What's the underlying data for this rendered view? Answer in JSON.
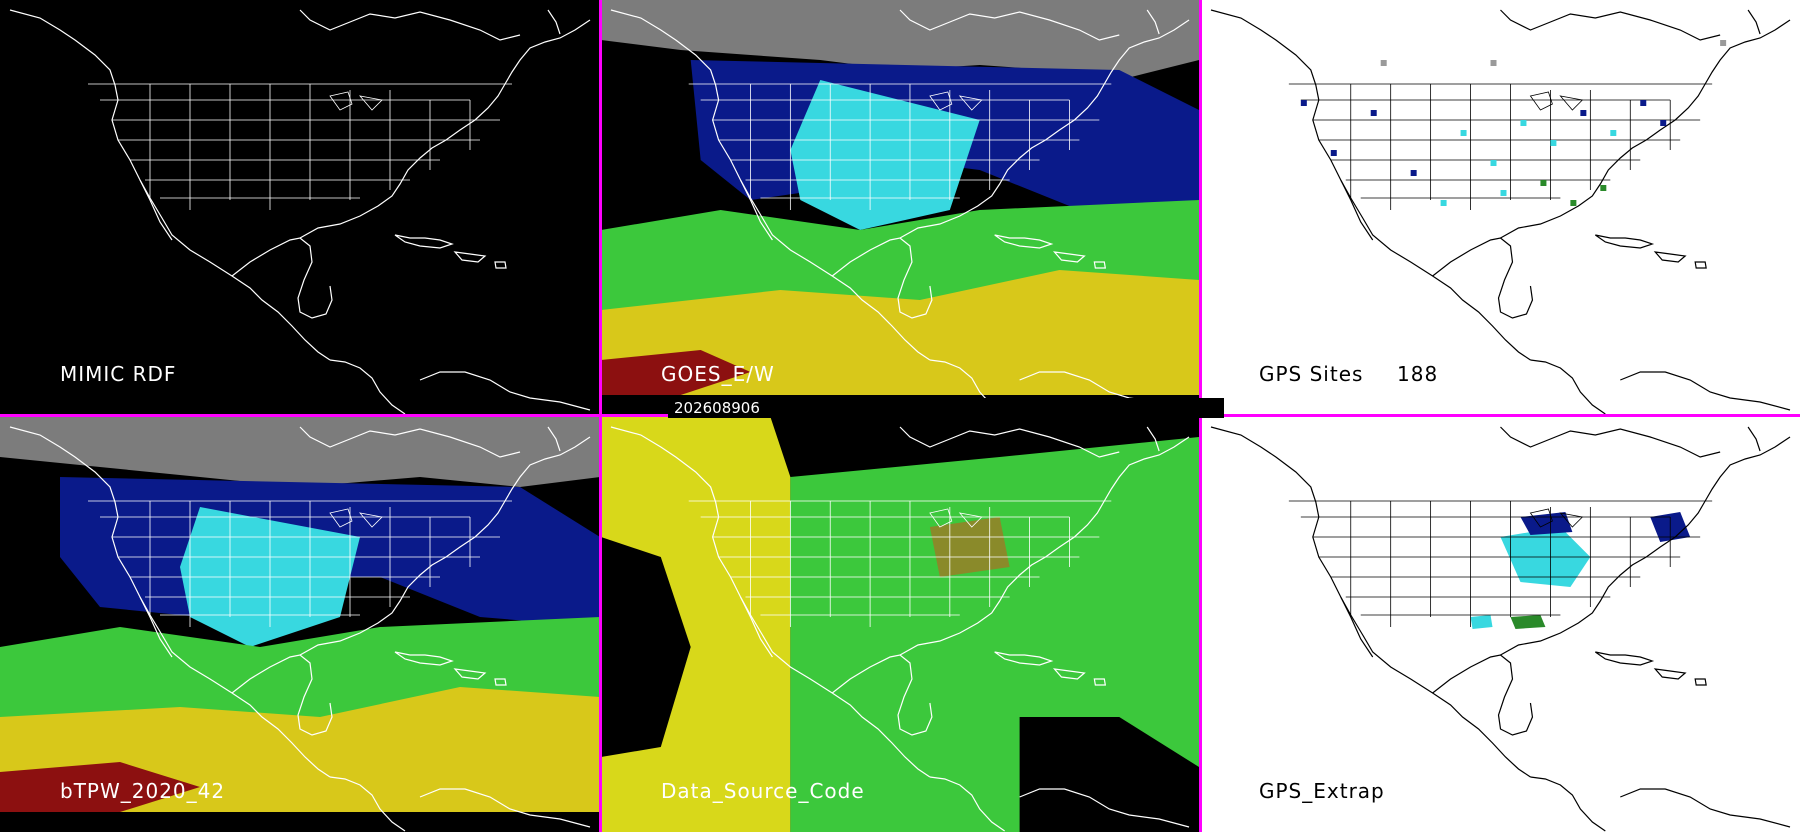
{
  "panels": {
    "p1": {
      "label": "MIMIC RDF"
    },
    "p2": {
      "label": "GOES_E/W"
    },
    "p3": {
      "label": "GPS Sites",
      "count": "188"
    },
    "p4": {
      "label": "bTPW_2020_42"
    },
    "p5": {
      "label": "Data_Source_Code"
    },
    "p6": {
      "label": "GPS_Extrap"
    }
  },
  "timestamp": "202608906",
  "colors": {
    "divider": "#ff00ff",
    "map_background_dark": "#000000",
    "map_background_light": "#ffffff",
    "tpw_navy": "#0a1a8a",
    "tpw_cyan": "#38d8e0",
    "tpw_green": "#3cc83c",
    "tpw_yellow": "#d8c81a",
    "tpw_red": "#8c1010",
    "cloud_grey": "#9a9a9a"
  }
}
